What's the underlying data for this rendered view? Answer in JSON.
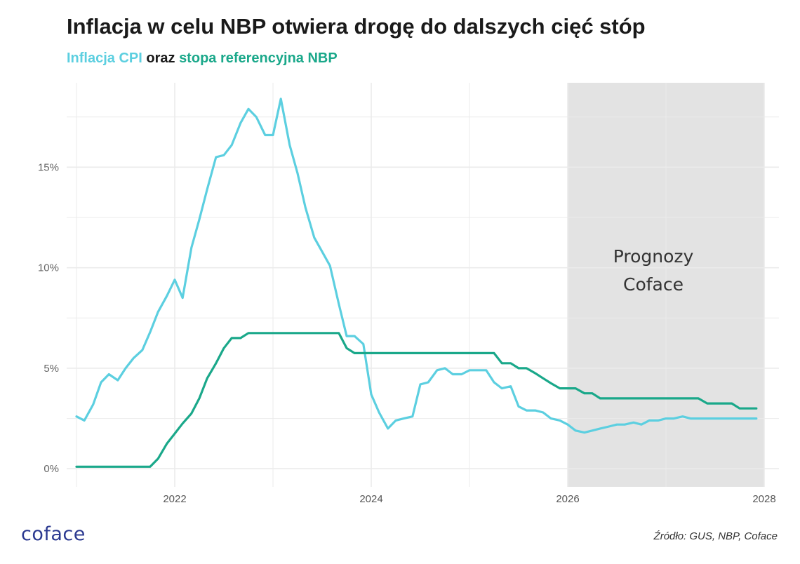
{
  "header": {
    "title": "Inflacja w celu NBP otwiera drogę do dalszych cięć stóp",
    "subtitle_cpi": "Inflacja CPI",
    "subtitle_and": " oraz ",
    "subtitle_ref": "stopa referencyjna NBP"
  },
  "forecast": {
    "line1": "Prognozy",
    "line2": "Coface",
    "start": 2026.0,
    "end": 2028.0
  },
  "footer": {
    "logo": "coface",
    "source": "Źródło: GUS, NBP, Coface"
  },
  "colors": {
    "cpi": "#5ccfe0",
    "ref": "#1aa88a",
    "forecast_band": "#e3e3e3",
    "grid": "#ebebeb"
  },
  "chart_data": {
    "type": "line",
    "title": "Inflacja w celu NBP otwiera drogę do dalszych cięć stóp",
    "xlabel": "",
    "ylabel": "",
    "xlim": [
      2020.9,
      2028.15
    ],
    "ylim": [
      -0.9,
      19.2
    ],
    "x_ticks": [
      2022,
      2024,
      2026,
      2028
    ],
    "x_tick_labels": [
      "2022",
      "2024",
      "2026",
      "2028"
    ],
    "y_ticks": [
      0,
      5,
      10,
      15
    ],
    "y_tick_labels": [
      "0%",
      "5%",
      "10%",
      "15%"
    ],
    "series": [
      {
        "name": "Inflacja CPI",
        "color": "#5ccfe0",
        "x": [
          2021.0,
          2021.08,
          2021.17,
          2021.25,
          2021.33,
          2021.42,
          2021.5,
          2021.58,
          2021.67,
          2021.75,
          2021.83,
          2021.92,
          2022.0,
          2022.08,
          2022.17,
          2022.25,
          2022.33,
          2022.42,
          2022.5,
          2022.58,
          2022.67,
          2022.75,
          2022.83,
          2022.92,
          2023.0,
          2023.08,
          2023.17,
          2023.25,
          2023.33,
          2023.42,
          2023.5,
          2023.58,
          2023.67,
          2023.75,
          2023.83,
          2023.92,
          2024.0,
          2024.08,
          2024.17,
          2024.25,
          2024.33,
          2024.42,
          2024.5,
          2024.58,
          2024.67,
          2024.75,
          2024.83,
          2024.92,
          2025.0,
          2025.08,
          2025.17,
          2025.25,
          2025.33,
          2025.42,
          2025.5,
          2025.58,
          2025.67,
          2025.75,
          2025.83,
          2025.92,
          2026.0,
          2026.08,
          2026.17,
          2026.25,
          2026.33,
          2026.42,
          2026.5,
          2026.58,
          2026.67,
          2026.75,
          2026.83,
          2026.92,
          2027.0,
          2027.08,
          2027.17,
          2027.25,
          2027.33,
          2027.42,
          2027.5,
          2027.58,
          2027.67,
          2027.75,
          2027.83,
          2027.92
        ],
        "values": [
          2.6,
          2.4,
          3.2,
          4.3,
          4.7,
          4.4,
          5.0,
          5.5,
          5.9,
          6.8,
          7.8,
          8.6,
          9.4,
          8.5,
          11.0,
          12.4,
          13.9,
          15.5,
          15.6,
          16.1,
          17.2,
          17.9,
          17.5,
          16.6,
          16.6,
          18.4,
          16.1,
          14.7,
          13.0,
          11.5,
          10.8,
          10.1,
          8.2,
          6.6,
          6.6,
          6.2,
          3.7,
          2.8,
          2.0,
          2.4,
          2.5,
          2.6,
          4.2,
          4.3,
          4.9,
          5.0,
          4.7,
          4.7,
          4.9,
          4.9,
          4.9,
          4.3,
          4.0,
          4.1,
          3.1,
          2.9,
          2.9,
          2.8,
          2.5,
          2.4,
          2.2,
          1.9,
          1.8,
          1.9,
          2.0,
          2.1,
          2.2,
          2.2,
          2.3,
          2.2,
          2.4,
          2.4,
          2.5,
          2.5,
          2.6,
          2.5,
          2.5,
          2.5,
          2.5,
          2.5,
          2.5,
          2.5,
          2.5,
          2.5
        ]
      },
      {
        "name": "stopa referencyjna NBP",
        "color": "#1aa88a",
        "x": [
          2021.0,
          2021.08,
          2021.17,
          2021.25,
          2021.33,
          2021.42,
          2021.5,
          2021.58,
          2021.67,
          2021.75,
          2021.83,
          2021.92,
          2022.0,
          2022.08,
          2022.17,
          2022.25,
          2022.33,
          2022.42,
          2022.5,
          2022.58,
          2022.67,
          2022.75,
          2022.83,
          2022.92,
          2023.0,
          2023.08,
          2023.17,
          2023.25,
          2023.33,
          2023.42,
          2023.5,
          2023.58,
          2023.67,
          2023.75,
          2023.83,
          2023.92,
          2024.0,
          2024.08,
          2024.17,
          2024.25,
          2024.33,
          2024.42,
          2024.5,
          2024.58,
          2024.67,
          2024.75,
          2024.83,
          2024.92,
          2025.0,
          2025.08,
          2025.17,
          2025.25,
          2025.33,
          2025.42,
          2025.5,
          2025.58,
          2025.67,
          2025.75,
          2025.83,
          2025.92,
          2026.0,
          2026.08,
          2026.17,
          2026.25,
          2026.33,
          2026.42,
          2026.5,
          2026.58,
          2026.67,
          2026.75,
          2026.83,
          2026.92,
          2027.0,
          2027.08,
          2027.17,
          2027.25,
          2027.33,
          2027.42,
          2027.5,
          2027.58,
          2027.67,
          2027.75,
          2027.83,
          2027.92
        ],
        "values": [
          0.1,
          0.1,
          0.1,
          0.1,
          0.1,
          0.1,
          0.1,
          0.1,
          0.1,
          0.1,
          0.5,
          1.25,
          1.75,
          2.25,
          2.75,
          3.5,
          4.5,
          5.25,
          6.0,
          6.5,
          6.5,
          6.75,
          6.75,
          6.75,
          6.75,
          6.75,
          6.75,
          6.75,
          6.75,
          6.75,
          6.75,
          6.75,
          6.75,
          6.0,
          5.75,
          5.75,
          5.75,
          5.75,
          5.75,
          5.75,
          5.75,
          5.75,
          5.75,
          5.75,
          5.75,
          5.75,
          5.75,
          5.75,
          5.75,
          5.75,
          5.75,
          5.75,
          5.25,
          5.25,
          5.0,
          5.0,
          4.75,
          4.5,
          4.25,
          4.0,
          4.0,
          4.0,
          3.75,
          3.75,
          3.5,
          3.5,
          3.5,
          3.5,
          3.5,
          3.5,
          3.5,
          3.5,
          3.5,
          3.5,
          3.5,
          3.5,
          3.5,
          3.25,
          3.25,
          3.25,
          3.25,
          3.0,
          3.0,
          3.0
        ]
      }
    ]
  }
}
